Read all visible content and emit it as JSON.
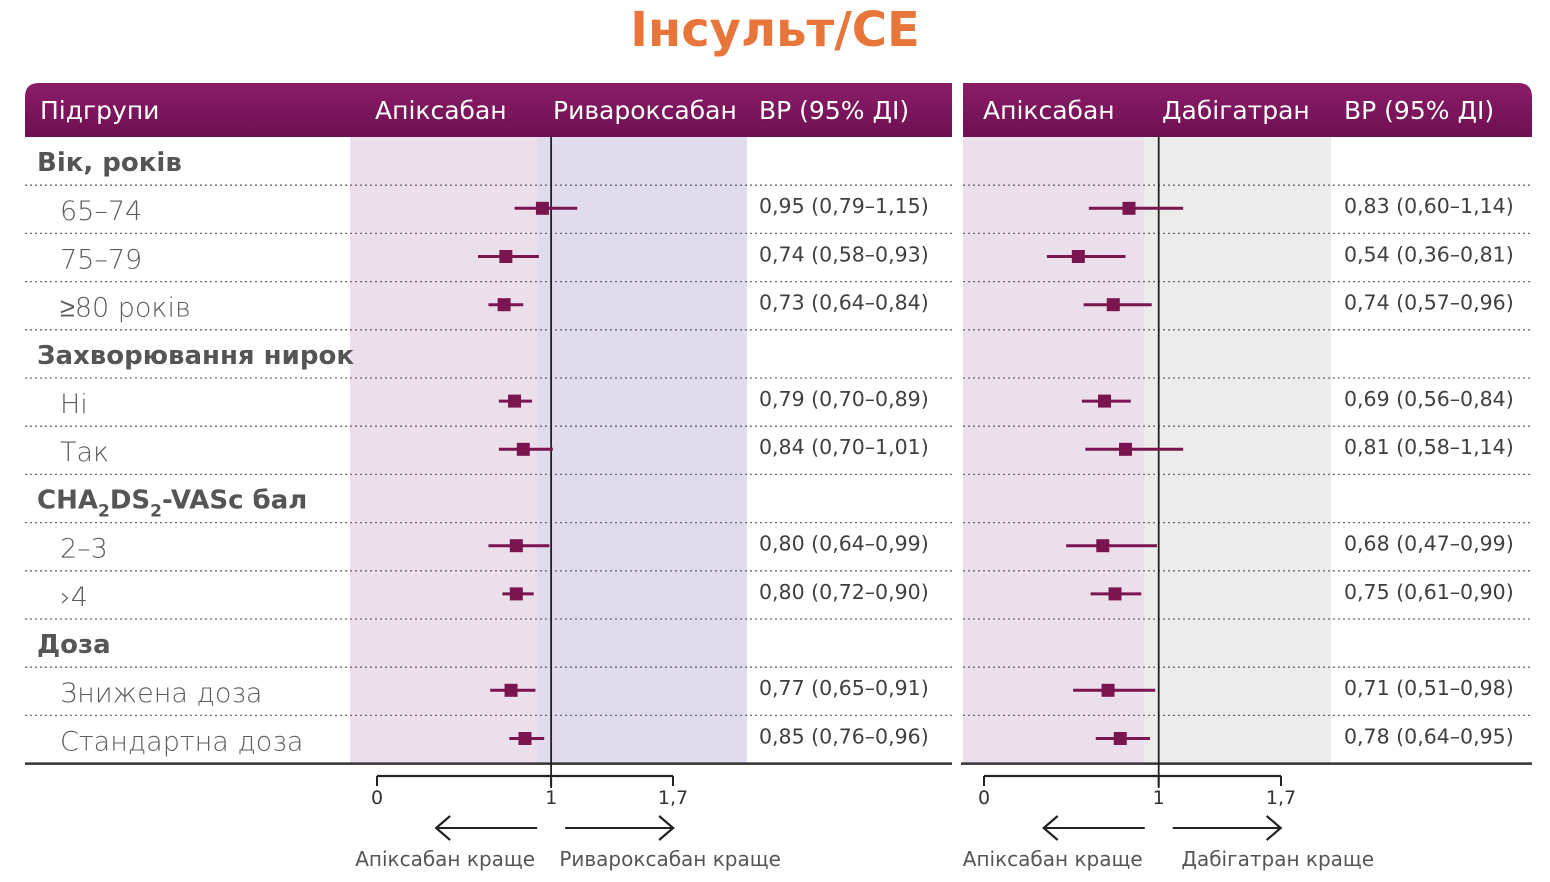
{
  "title": "Інсульт/СЕ",
  "colors": {
    "title": "#e8753a",
    "header_dark": "#6e0f52",
    "header_mid": "#8b1d68",
    "marker": "#7a1550",
    "panel_pink": "#ecdfec",
    "panel_lavender": "#e0dced",
    "panel_grey": "#ececed"
  },
  "header": {
    "subgroups": "Підгрупи",
    "left": {
      "drug_a": "Апіксабан",
      "drug_b": "Ривароксабан",
      "hr": "ВР (95% ДІ)"
    },
    "right": {
      "drug_a": "Апіксабан",
      "drug_b": "Дабігатран",
      "hr": "ВР (95% ДІ)"
    }
  },
  "chart_data": {
    "type": "forest",
    "title": "Інсульт/СЕ",
    "rows": [
      {
        "kind": "group",
        "label": "Вік, років"
      },
      {
        "kind": "item",
        "label": "65–74",
        "left_hr": "0,95 (0,79–1,15)",
        "right_hr": "0,83 (0,60–1,14)"
      },
      {
        "kind": "item",
        "label": "75–79",
        "left_hr": "0,74 (0,58–0,93)",
        "right_hr": "0,54 (0,36–0,81)"
      },
      {
        "kind": "item",
        "label": "≥80 років",
        "left_hr": "0,73 (0,64–0,84)",
        "right_hr": "0,74 (0,57–0,96)"
      },
      {
        "kind": "group",
        "label": "Захворювання нирок"
      },
      {
        "kind": "item",
        "label": "Ні",
        "left_hr": "0,79 (0,70–0,89)",
        "right_hr": "0,69 (0,56–0,84)"
      },
      {
        "kind": "item",
        "label": "Так",
        "left_hr": "0,84 (0,70–1,01)",
        "right_hr": "0,81 (0,58–1,14)"
      },
      {
        "kind": "group",
        "label": "CHA",
        "sub1": "2",
        "mid": "DS",
        "sub2": "2",
        "rest": "-VASc бал"
      },
      {
        "kind": "item",
        "label": "2–3",
        "left_hr": "0,80 (0,64–0,99)",
        "right_hr": "0,68 (0,47–0,99)"
      },
      {
        "kind": "item",
        "label": "›4",
        "left_hr": "0,80 (0,72–0,90)",
        "right_hr": "0,75 (0,61–0,90)"
      },
      {
        "kind": "group",
        "label": "Доза"
      },
      {
        "kind": "item",
        "label": "Знижена доза",
        "left_hr": "0,77 (0,65–0,91)",
        "right_hr": "0,71 (0,51–0,98)"
      },
      {
        "kind": "item",
        "label": "Стандартна доза",
        "left_hr": "0,85 (0,76–0,96)",
        "right_hr": "0,78 (0,64–0,95)"
      }
    ],
    "left": {
      "xlim": [
        0,
        1.7
      ],
      "reference": 1,
      "ticks": [
        "0",
        "1",
        "1,7"
      ],
      "better_left": "Апіксабан краще",
      "better_right": "Ривароксабан краще",
      "points": [
        {
          "hr": 0.95,
          "lo": 0.79,
          "hi": 1.15
        },
        {
          "hr": 0.74,
          "lo": 0.58,
          "hi": 0.93
        },
        {
          "hr": 0.73,
          "lo": 0.64,
          "hi": 0.84
        },
        {
          "hr": 0.79,
          "lo": 0.7,
          "hi": 0.89
        },
        {
          "hr": 0.84,
          "lo": 0.7,
          "hi": 1.01
        },
        {
          "hr": 0.8,
          "lo": 0.64,
          "hi": 0.99
        },
        {
          "hr": 0.8,
          "lo": 0.72,
          "hi": 0.9
        },
        {
          "hr": 0.77,
          "lo": 0.65,
          "hi": 0.91
        },
        {
          "hr": 0.85,
          "lo": 0.76,
          "hi": 0.96
        }
      ]
    },
    "right": {
      "xlim": [
        0,
        1.7
      ],
      "reference": 1,
      "ticks": [
        "0",
        "1",
        "1,7"
      ],
      "better_left": "Апіксабан краще",
      "better_right": "Дабігатран краще",
      "points": [
        {
          "hr": 0.83,
          "lo": 0.6,
          "hi": 1.14
        },
        {
          "hr": 0.54,
          "lo": 0.36,
          "hi": 0.81
        },
        {
          "hr": 0.74,
          "lo": 0.57,
          "hi": 0.96
        },
        {
          "hr": 0.69,
          "lo": 0.56,
          "hi": 0.84
        },
        {
          "hr": 0.81,
          "lo": 0.58,
          "hi": 1.14
        },
        {
          "hr": 0.68,
          "lo": 0.47,
          "hi": 0.99
        },
        {
          "hr": 0.75,
          "lo": 0.61,
          "hi": 0.9
        },
        {
          "hr": 0.71,
          "lo": 0.51,
          "hi": 0.98
        },
        {
          "hr": 0.78,
          "lo": 0.64,
          "hi": 0.95
        }
      ]
    }
  }
}
